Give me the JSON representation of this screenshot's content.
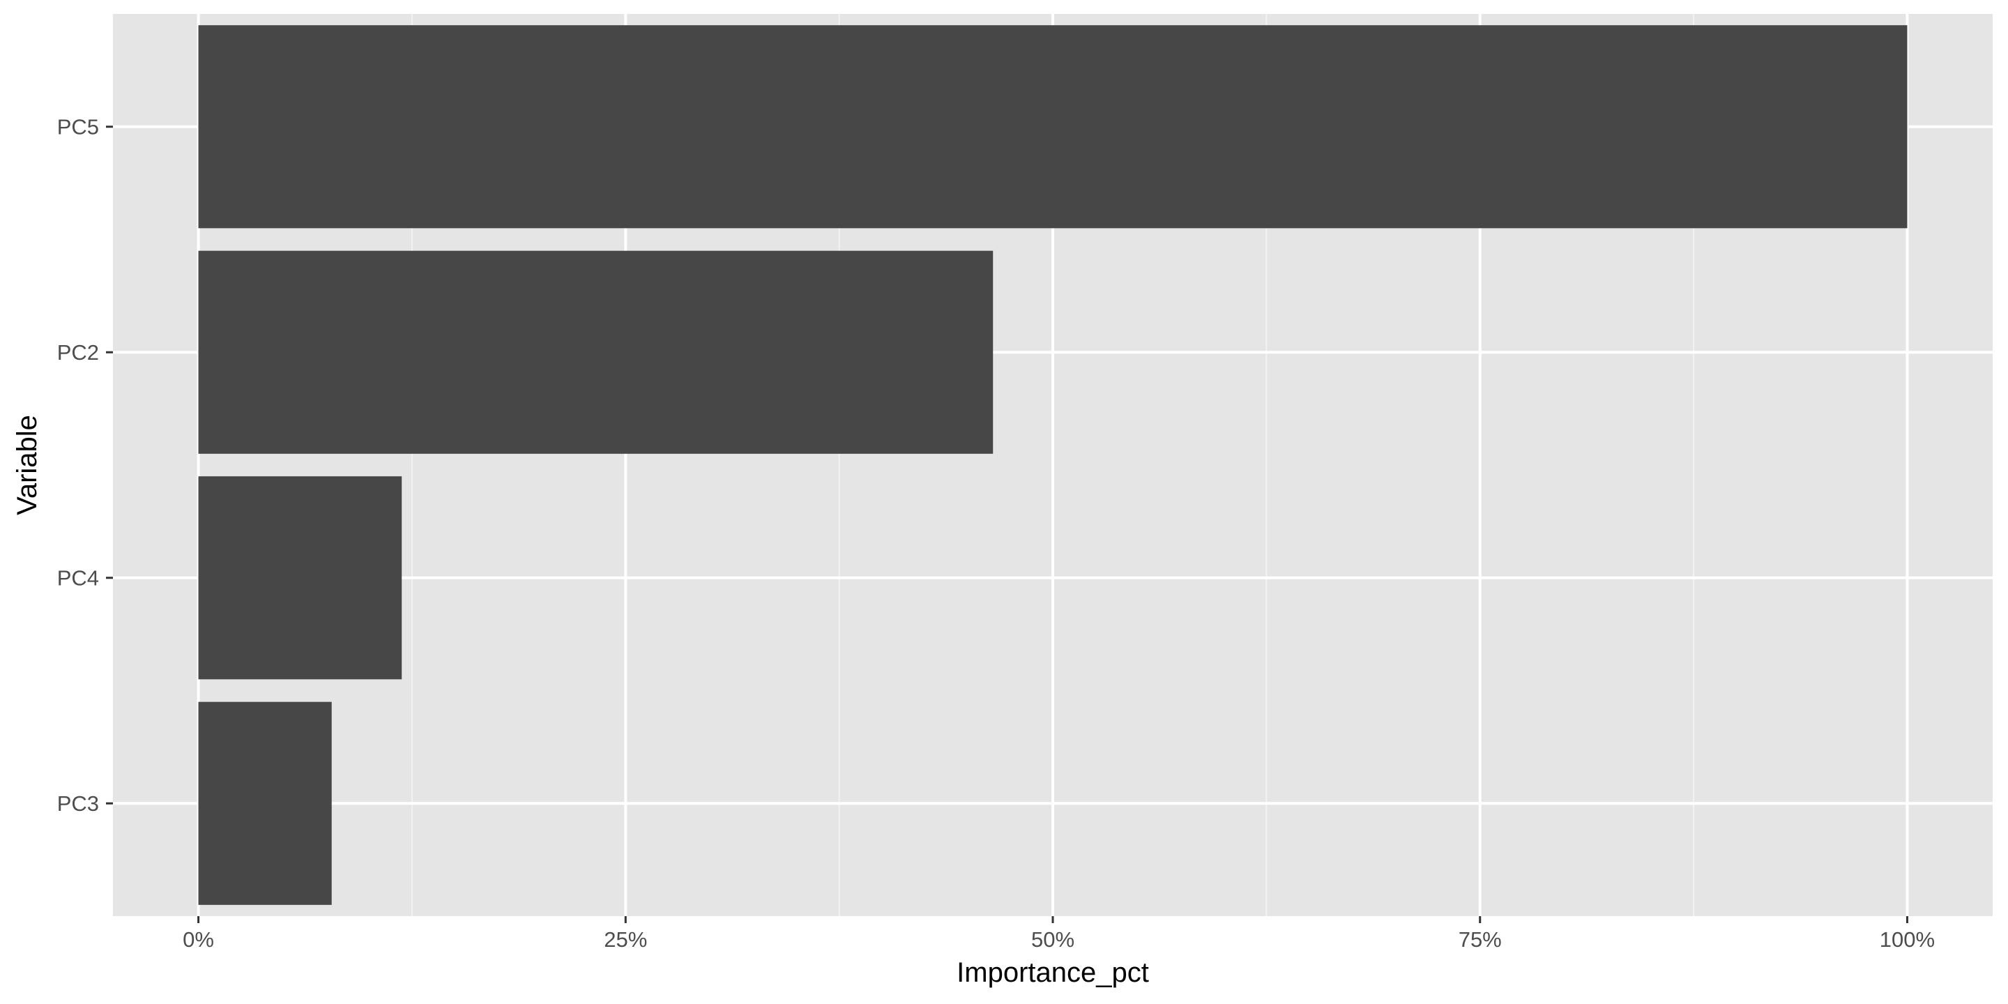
{
  "chart_data": {
    "type": "bar",
    "orientation": "horizontal",
    "categories": [
      "PC3",
      "PC4",
      "PC2",
      "PC5"
    ],
    "values": [
      7.8,
      11.9,
      46.5,
      100
    ],
    "title": "",
    "xlabel": "Importance_pct",
    "ylabel": "Variable",
    "xlim": [
      -5,
      105
    ],
    "xticks": [
      0,
      25,
      50,
      75,
      100
    ],
    "xtick_labels": [
      "0%",
      "25%",
      "50%",
      "75%",
      "100%"
    ],
    "grid": true,
    "legend": "none",
    "colors": {
      "bar": "#474747",
      "panel_background": "#e5e5e5",
      "grid_major": "#ffffff",
      "grid_minor": "#f2f2f2",
      "tick_text": "#4d4d4d",
      "tick_mark": "#333333"
    }
  }
}
